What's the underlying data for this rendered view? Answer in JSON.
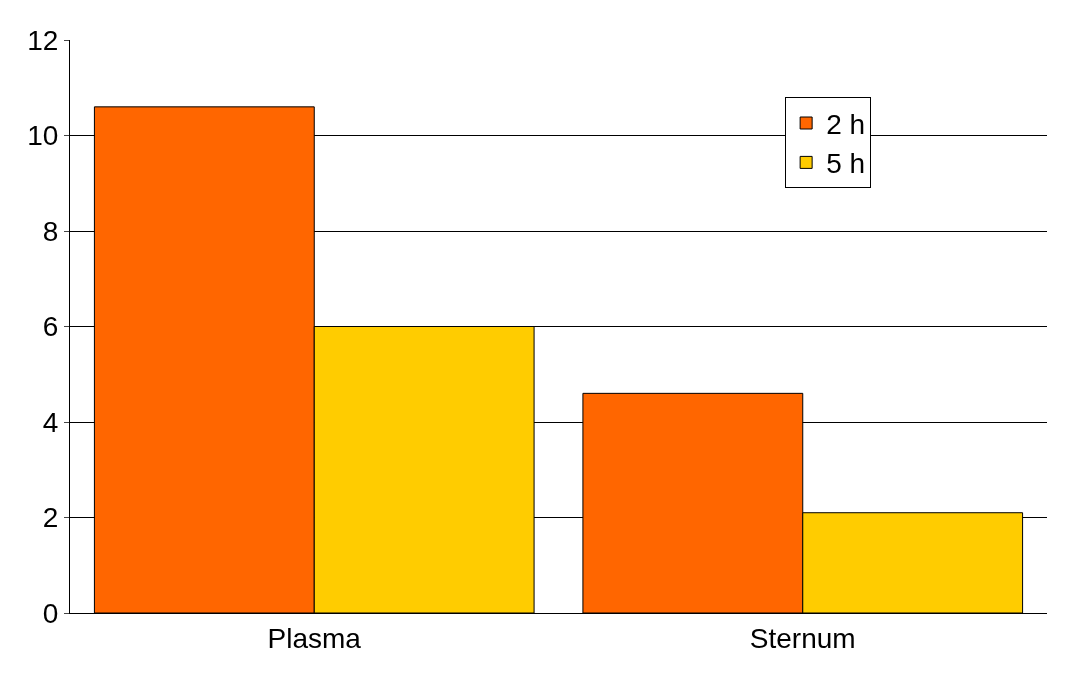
{
  "chart_data": {
    "type": "bar",
    "categories": [
      "Plasma",
      "Sternum"
    ],
    "series": [
      {
        "name": "2 h",
        "color": "#ff6600",
        "values": [
          10.6,
          4.6
        ]
      },
      {
        "name": "5 h",
        "color": "#ffcc00",
        "values": [
          6.0,
          2.1
        ]
      }
    ],
    "ylim": [
      0,
      12
    ],
    "yticks": [
      0,
      2,
      4,
      6,
      8,
      10,
      12
    ],
    "grid": "y",
    "legend": "top right"
  }
}
